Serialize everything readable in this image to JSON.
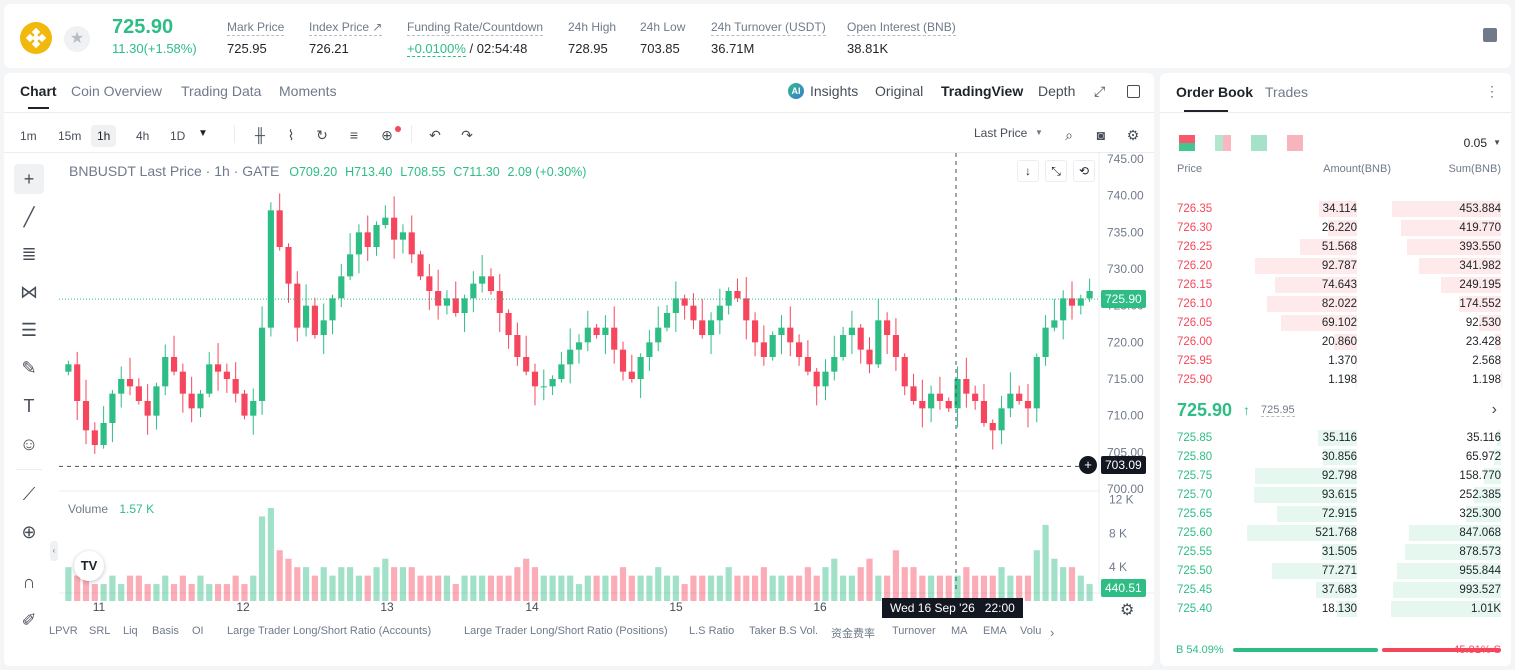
{
  "header": {
    "last_price": "725.90",
    "change": "11.30(+1.58%)",
    "stats": [
      {
        "label": "Mark Price",
        "value": "725.95"
      },
      {
        "label": "Index Price ↗",
        "value": "726.21"
      },
      {
        "label": "Funding Rate/Countdown",
        "value_rate": "+0.0100%",
        "value_countdown": "/ 02:54:48"
      },
      {
        "label": "24h High",
        "value": "728.95"
      },
      {
        "label": "24h Low",
        "value": "703.85"
      },
      {
        "label": "24h Turnover (USDT)",
        "value": "36.71M"
      },
      {
        "label": "Open Interest (BNB)",
        "value": "38.81K"
      }
    ]
  },
  "chart_tabs": [
    "Chart",
    "Coin Overview",
    "Trading Data",
    "Moments"
  ],
  "chart_view": [
    "Insights",
    "Original",
    "TradingView",
    "Depth"
  ],
  "timeframes": [
    "1m",
    "15m",
    "1h",
    "4h",
    "1D"
  ],
  "last_price_select": "Last Price",
  "legend": {
    "symbol": "BNBUSDT Last Price · 1h · GATE",
    "o": "O709.20",
    "h": "H713.40",
    "l": "L708.55",
    "c": "C711.30",
    "chg": "2.09 (+0.30%)"
  },
  "volume_label": "Volume",
  "volume_value": "1.57 K",
  "price_axis": [
    "745.00",
    "740.00",
    "735.00",
    "730.00",
    "725.00",
    "720.00",
    "715.00",
    "710.00",
    "705.00",
    "700.00"
  ],
  "volume_axis": [
    "12 K",
    "8 K",
    "4 K"
  ],
  "time_axis": [
    "11",
    "12",
    "13",
    "14",
    "15",
    "16"
  ],
  "current_price_tag": "725.90",
  "cursor_price_tag": "703.09",
  "volume_tag": "440.51",
  "crosshair_time": "Wed 16 Sep '26   22:00",
  "indicators": [
    "LPVR",
    "SRL",
    "Liq",
    "Basis",
    "OI",
    "Large Trader Long/Short Ratio (Accounts)",
    "Large Trader Long/Short Ratio (Positions)",
    "L.S Ratio",
    "Taker B.S Vol.",
    "资金费率",
    "Turnover",
    "MA",
    "EMA",
    "Volu"
  ],
  "orderbook": {
    "tabs": [
      "Order Book",
      "Trades"
    ],
    "precision": "0.05",
    "headers": [
      "Price",
      "Amount(BNB)",
      "Sum(BNB)"
    ],
    "asks": [
      {
        "price": "726.35",
        "amount": "34.114",
        "sum": "453.884"
      },
      {
        "price": "726.30",
        "amount": "26.220",
        "sum": "419.770"
      },
      {
        "price": "726.25",
        "amount": "51.568",
        "sum": "393.550"
      },
      {
        "price": "726.20",
        "amount": "92.787",
        "sum": "341.982"
      },
      {
        "price": "726.15",
        "amount": "74.643",
        "sum": "249.195"
      },
      {
        "price": "726.10",
        "amount": "82.022",
        "sum": "174.552"
      },
      {
        "price": "726.05",
        "amount": "69.102",
        "sum": "92.530"
      },
      {
        "price": "726.00",
        "amount": "20.860",
        "sum": "23.428"
      },
      {
        "price": "725.95",
        "amount": "1.370",
        "sum": "2.568"
      },
      {
        "price": "725.90",
        "amount": "1.198",
        "sum": "1.198"
      }
    ],
    "mid_price": "725.90",
    "mid_mark": "725.95",
    "bids": [
      {
        "price": "725.85",
        "amount": "35.116",
        "sum": "35.116"
      },
      {
        "price": "725.80",
        "amount": "30.856",
        "sum": "65.972"
      },
      {
        "price": "725.75",
        "amount": "92.798",
        "sum": "158.770"
      },
      {
        "price": "725.70",
        "amount": "93.615",
        "sum": "252.385"
      },
      {
        "price": "725.65",
        "amount": "72.915",
        "sum": "325.300"
      },
      {
        "price": "725.60",
        "amount": "521.768",
        "sum": "847.068"
      },
      {
        "price": "725.55",
        "amount": "31.505",
        "sum": "878.573"
      },
      {
        "price": "725.50",
        "amount": "77.271",
        "sum": "955.844"
      },
      {
        "price": "725.45",
        "amount": "37.683",
        "sum": "993.527"
      },
      {
        "price": "725.40",
        "amount": "18.130",
        "sum": "1.01K"
      }
    ],
    "buy_ratio": "B 54.09%",
    "sell_ratio": "45.91% S",
    "buy_fraction": 0.5409
  },
  "colors": {
    "up": "#2ebd85",
    "down": "#f6465d",
    "brand": "#f0b90b"
  },
  "chart_data": {
    "type": "candlestick",
    "symbol": "BNBUSDT",
    "interval": "1h",
    "ylim": [
      700,
      745
    ],
    "x_ticks": [
      "11",
      "12",
      "13",
      "14",
      "15",
      "16"
    ],
    "closes": [
      717,
      712,
      708,
      706,
      709,
      713,
      715,
      714,
      712,
      710,
      714,
      718,
      716,
      713,
      711,
      713,
      717,
      716,
      715,
      713,
      710,
      712,
      722,
      738,
      733,
      728,
      722,
      725,
      721,
      723,
      726,
      729,
      732,
      735,
      733,
      736,
      737,
      734,
      735,
      732,
      729,
      727,
      725,
      726,
      724,
      726,
      728,
      729,
      727,
      724,
      721,
      718,
      716,
      714,
      714,
      715,
      717,
      719,
      720,
      722,
      721,
      722,
      719,
      716,
      715,
      718,
      720,
      722,
      724,
      726,
      725,
      723,
      721,
      723,
      725,
      727,
      726,
      723,
      720,
      718,
      721,
      722,
      720,
      718,
      716,
      714,
      716,
      718,
      721,
      722,
      719,
      717,
      723,
      721,
      718,
      714,
      712,
      711,
      713,
      712,
      711,
      715,
      713,
      712,
      709,
      708,
      711,
      713,
      712,
      711,
      718,
      722,
      723,
      726,
      725,
      726,
      727
    ],
    "volume_k": [
      4,
      3,
      3,
      2,
      2,
      3,
      2,
      3,
      3,
      2,
      2,
      3,
      2,
      3,
      2,
      3,
      2,
      2,
      2,
      3,
      2,
      3,
      10,
      11,
      6,
      5,
      4,
      4,
      3,
      4,
      3,
      4,
      4,
      3,
      3,
      4,
      5,
      4,
      4,
      4,
      3,
      3,
      3,
      3,
      2,
      3,
      3,
      3,
      3,
      3,
      3,
      4,
      5,
      4,
      3,
      3,
      3,
      3,
      2,
      3,
      3,
      3,
      3,
      4,
      3,
      3,
      3,
      4,
      3,
      3,
      2,
      3,
      3,
      3,
      3,
      4,
      3,
      3,
      3,
      4,
      3,
      3,
      3,
      3,
      4,
      3,
      4,
      5,
      3,
      3,
      4,
      5,
      3,
      3,
      6,
      4,
      4,
      3,
      3,
      3,
      3,
      3,
      4,
      3,
      3,
      3,
      4,
      3,
      3,
      3,
      6,
      9,
      5,
      4,
      4,
      3,
      2
    ]
  }
}
